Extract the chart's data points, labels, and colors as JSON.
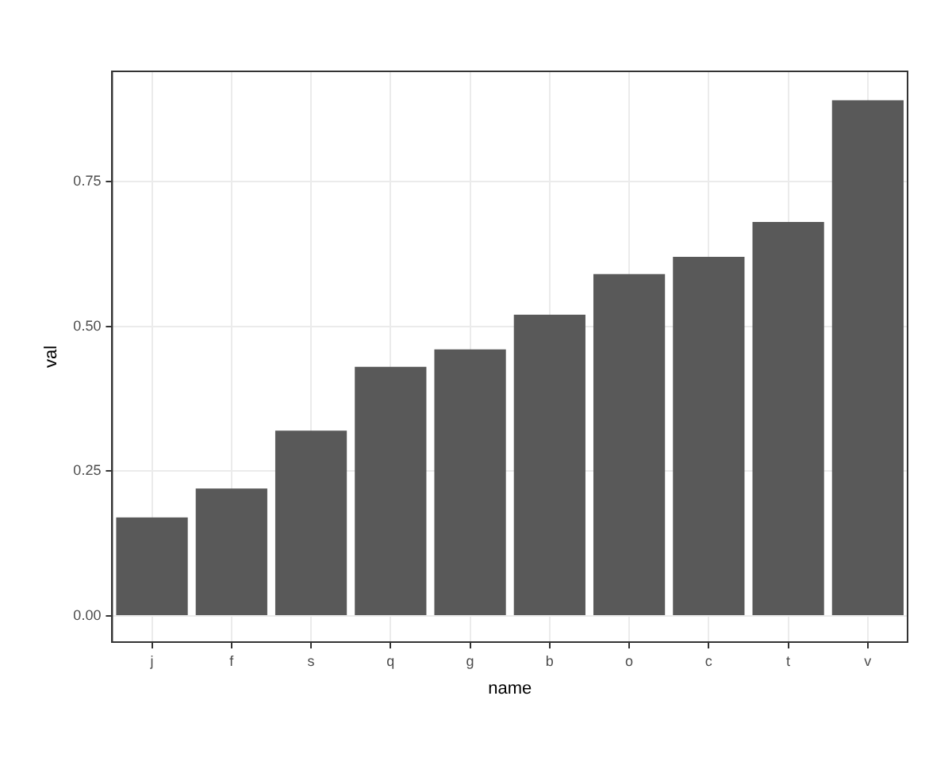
{
  "chart_data": {
    "type": "bar",
    "xlabel": "name",
    "ylabel": "val",
    "categories": [
      "j",
      "f",
      "s",
      "q",
      "g",
      "b",
      "o",
      "c",
      "t",
      "v"
    ],
    "values": [
      0.17,
      0.22,
      0.32,
      0.43,
      0.46,
      0.52,
      0.59,
      0.62,
      0.68,
      0.89
    ],
    "color": "#595959",
    "ylim": [
      -0.045,
      0.94
    ],
    "yticks": [
      {
        "value": 0,
        "label": "0.00"
      },
      0.25,
      {
        "value": 0.5,
        "label": "0.50"
      },
      0.75
    ],
    "grid": true,
    "legend": false
  }
}
